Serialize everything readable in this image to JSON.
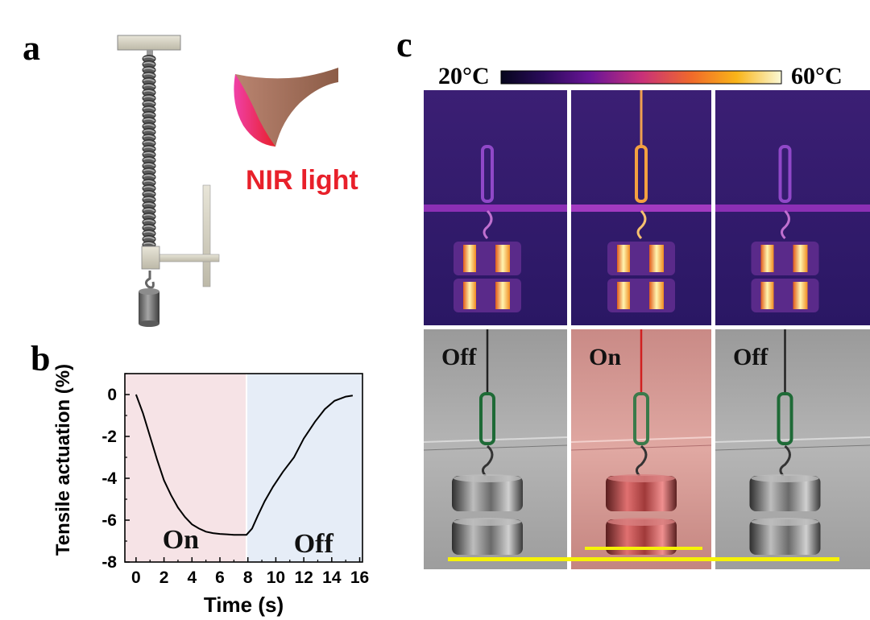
{
  "panels": {
    "a": {
      "label": "a",
      "nir_text": "NIR light"
    },
    "b": {
      "label": "b"
    },
    "c": {
      "label": "c",
      "colorbar": {
        "min_label": "20°C",
        "max_label": "60°C"
      },
      "photo_labels": [
        "Off",
        "On",
        "Off"
      ]
    }
  },
  "chart_data": {
    "type": "line",
    "xlabel": "Time (s)",
    "ylabel": "Tensile actuation (%)",
    "xlim": [
      -0.8,
      16.2
    ],
    "ylim": [
      -8,
      1
    ],
    "xticks": [
      0,
      2,
      4,
      6,
      8,
      10,
      12,
      14,
      16
    ],
    "yticks": [
      0,
      -2,
      -4,
      -6,
      -8
    ],
    "regions": [
      {
        "label": "On",
        "from": -0.8,
        "to": 7.9,
        "color": "#f6e3e6"
      },
      {
        "label": "Off",
        "from": 7.9,
        "to": 16.2,
        "color": "#e6edf7"
      }
    ],
    "series": [
      {
        "x": [
          0,
          0.5,
          1,
          1.5,
          2,
          2.5,
          3,
          3.5,
          4,
          4.5,
          5,
          5.5,
          6,
          6.5,
          7,
          7.5,
          7.9,
          8.3,
          8.7,
          9.2,
          9.8,
          10.5,
          11.3,
          12,
          12.8,
          13.5,
          14.2,
          15,
          15.5
        ],
        "y": [
          0,
          -0.9,
          -2.0,
          -3.1,
          -4.1,
          -4.8,
          -5.4,
          -5.85,
          -6.2,
          -6.4,
          -6.55,
          -6.62,
          -6.66,
          -6.68,
          -6.7,
          -6.7,
          -6.7,
          -6.4,
          -5.8,
          -5.1,
          -4.4,
          -3.7,
          -3.0,
          -2.1,
          -1.3,
          -0.7,
          -0.3,
          -0.1,
          -0.05
        ]
      }
    ]
  },
  "colors": {
    "laser_red": "#e8202a",
    "laser_pink": "#ee2a8f",
    "scale_bar_yellow": "#f6f207"
  }
}
